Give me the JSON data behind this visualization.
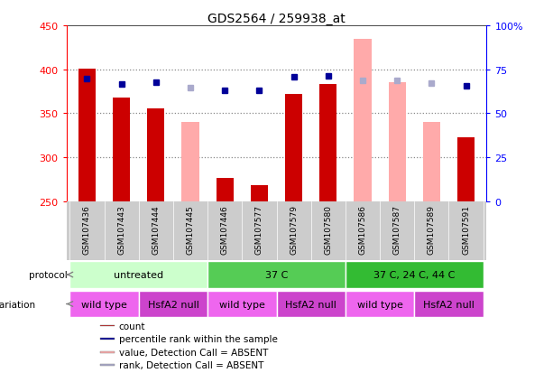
{
  "title": "GDS2564 / 259938_at",
  "samples": [
    "GSM107436",
    "GSM107443",
    "GSM107444",
    "GSM107445",
    "GSM107446",
    "GSM107577",
    "GSM107579",
    "GSM107580",
    "GSM107586",
    "GSM107587",
    "GSM107589",
    "GSM107591"
  ],
  "count_values": [
    401,
    368,
    356,
    null,
    277,
    268,
    372,
    383,
    null,
    null,
    null,
    323
  ],
  "absent_values": [
    null,
    null,
    null,
    340,
    null,
    null,
    null,
    null,
    435,
    385,
    340,
    null
  ],
  "percentile_present": [
    389,
    383,
    385,
    null,
    376,
    376,
    391,
    393,
    null,
    null,
    null,
    381
  ],
  "percentile_absent": [
    null,
    null,
    null,
    379,
    null,
    null,
    null,
    null,
    387,
    387,
    384,
    null
  ],
  "ylim_left": [
    250,
    450
  ],
  "ylim_right": [
    0,
    100
  ],
  "yticks_left": [
    250,
    300,
    350,
    400,
    450
  ],
  "yticks_right": [
    0,
    25,
    50,
    75,
    100
  ],
  "yticklabels_right": [
    "0",
    "25",
    "50",
    "75",
    "100%"
  ],
  "protocol_groups": [
    {
      "label": "untreated",
      "span": [
        0,
        4
      ],
      "color": "#ccffcc"
    },
    {
      "label": "37 C",
      "span": [
        4,
        8
      ],
      "color": "#55cc55"
    },
    {
      "label": "37 C, 24 C, 44 C",
      "span": [
        8,
        12
      ],
      "color": "#33bb33"
    }
  ],
  "genotype_groups": [
    {
      "label": "wild type",
      "span": [
        0,
        2
      ],
      "color": "#ee66ee"
    },
    {
      "label": "HsfA2 null",
      "span": [
        2,
        4
      ],
      "color": "#cc44cc"
    },
    {
      "label": "wild type",
      "span": [
        4,
        6
      ],
      "color": "#ee66ee"
    },
    {
      "label": "HsfA2 null",
      "span": [
        6,
        8
      ],
      "color": "#cc44cc"
    },
    {
      "label": "wild type",
      "span": [
        8,
        10
      ],
      "color": "#ee66ee"
    },
    {
      "label": "HsfA2 null",
      "span": [
        10,
        12
      ],
      "color": "#cc44cc"
    }
  ],
  "bar_width": 0.5,
  "count_color": "#cc0000",
  "absent_bar_color": "#ffaaaa",
  "percentile_present_color": "#000099",
  "percentile_absent_color": "#aaaacc",
  "grid_dotted_color": "#888888",
  "bg_color": "#ffffff",
  "xband_color": "#cccccc",
  "legend_items": [
    {
      "label": "count",
      "color": "#cc0000"
    },
    {
      "label": "percentile rank within the sample",
      "color": "#000099"
    },
    {
      "label": "value, Detection Call = ABSENT",
      "color": "#ffaaaa"
    },
    {
      "label": "rank, Detection Call = ABSENT",
      "color": "#aaaacc"
    }
  ]
}
